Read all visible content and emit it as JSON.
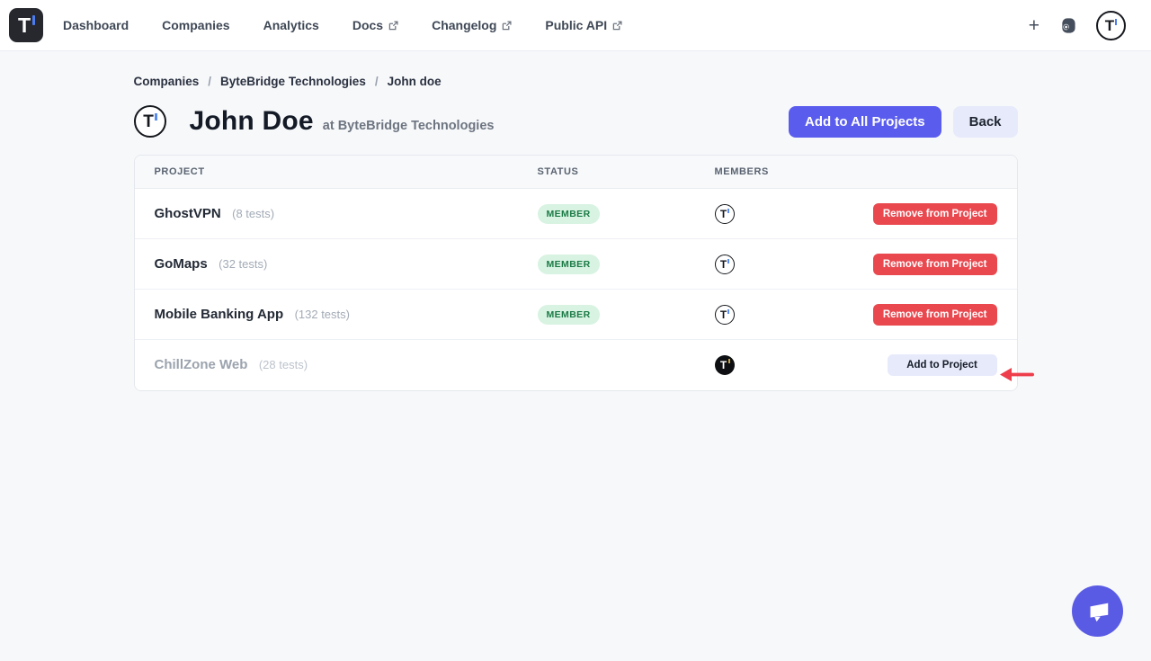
{
  "brand": {
    "letter": "T"
  },
  "colors": {
    "primary": "#5a5cee",
    "danger": "#e9484f",
    "success_text": "#1b7a45",
    "success_bg": "#d8f3e2",
    "annotation_red": "#ee3d4b",
    "logo_accent_blue": "#4b7cf0",
    "avatar_accent_gold": "#c8a34b",
    "chat_fab": "#5a5be4"
  },
  "nav": {
    "plus_label": "+",
    "links": [
      {
        "label": "Dashboard",
        "external": false
      },
      {
        "label": "Companies",
        "external": false
      },
      {
        "label": "Analytics",
        "external": false
      },
      {
        "label": "Docs",
        "external": true
      },
      {
        "label": "Changelog",
        "external": true
      },
      {
        "label": "Public API",
        "external": true
      }
    ]
  },
  "breadcrumb": {
    "items": [
      "Companies",
      "ByteBridge Technologies",
      "John doe"
    ],
    "separator": "/"
  },
  "page": {
    "title": "John Doe",
    "subtitle": "at ByteBridge Technologies"
  },
  "actions": {
    "add_all": "Add to All Projects",
    "back": "Back"
  },
  "table": {
    "columns": [
      "PROJECT",
      "STATUS",
      "MEMBERS"
    ],
    "rows": [
      {
        "name": "GhostVPN",
        "tests": "(8 tests)",
        "status": "MEMBER",
        "avatar": "ring",
        "action": "Remove from Project",
        "action_type": "remove",
        "muted": false
      },
      {
        "name": "GoMaps",
        "tests": "(32 tests)",
        "status": "MEMBER",
        "avatar": "ring",
        "action": "Remove from Project",
        "action_type": "remove",
        "muted": false
      },
      {
        "name": "Mobile Banking App",
        "tests": "(132 tests)",
        "status": "MEMBER",
        "avatar": "ring",
        "action": "Remove from Project",
        "action_type": "remove",
        "muted": false
      },
      {
        "name": "ChillZone Web",
        "tests": "(28 tests)",
        "status": "",
        "avatar": "dark",
        "action": "Add to Project",
        "action_type": "add",
        "muted": true
      }
    ]
  }
}
